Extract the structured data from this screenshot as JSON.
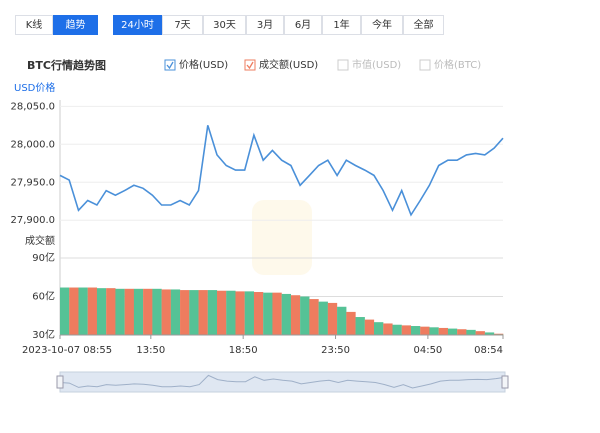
{
  "tabs": {
    "view": [
      "K线",
      "趋势"
    ],
    "active_view": 1,
    "range": [
      "24小时",
      "7天",
      "30天",
      "3月",
      "6月",
      "1年",
      "今年",
      "全部"
    ],
    "active_range": 0
  },
  "title": "BTC行情趋势图",
  "legend_inactive": [
    "市值(USD)",
    "价格(BTC)"
  ],
  "chart_data": [
    {
      "type": "line",
      "y_label": "USD价格",
      "x": [
        0,
        30,
        60,
        90,
        120,
        150,
        180,
        210,
        240,
        270,
        300,
        330,
        360,
        390,
        420,
        450,
        480,
        510,
        540,
        570,
        600,
        630,
        660,
        690,
        720,
        750,
        780,
        810,
        840,
        870,
        900,
        930,
        960,
        990,
        1020,
        1050,
        1080,
        1110,
        1140,
        1170,
        1200,
        1230,
        1260,
        1290,
        1320,
        1350,
        1380,
        1410,
        1439
      ],
      "xlim": [
        0,
        1439
      ],
      "series": [
        {
          "name": "价格(USD)",
          "color": "#4a90d9",
          "values": [
            27959,
            27953,
            27913,
            27926,
            27920,
            27939,
            27933,
            27939,
            27946,
            27942,
            27933,
            27920,
            27920,
            27926,
            27920,
            27939,
            28025,
            27986,
            27972,
            27966,
            27966,
            28012,
            27979,
            27992,
            27979,
            27972,
            27946,
            27959,
            27972,
            27979,
            27959,
            27979,
            27972,
            27966,
            27959,
            27939,
            27913,
            27939,
            27907,
            27926,
            27946,
            27972,
            27979,
            27979,
            27986,
            27988,
            27986,
            27995,
            28008
          ]
        }
      ],
      "ylim": [
        27870,
        28057
      ],
      "yticks": [
        {
          "value": 27900,
          "label": "27,900.0"
        },
        {
          "value": 27950,
          "label": "27,950.0"
        },
        {
          "value": 28000,
          "label": "28,000.0"
        },
        {
          "value": 28050,
          "label": "28,050.0"
        }
      ],
      "grid": true
    },
    {
      "type": "bar",
      "y_label": "成交额",
      "x": [
        0,
        30,
        60,
        90,
        120,
        150,
        180,
        210,
        240,
        270,
        300,
        330,
        360,
        390,
        420,
        450,
        480,
        510,
        540,
        570,
        600,
        630,
        660,
        690,
        720,
        750,
        780,
        810,
        840,
        870,
        900,
        930,
        960,
        990,
        1020,
        1050,
        1080,
        1110,
        1140,
        1170,
        1200,
        1230,
        1260,
        1290,
        1320,
        1350,
        1380,
        1410,
        1439
      ],
      "xlim": [
        0,
        1439
      ],
      "series": [
        {
          "name": "成交额(USD)",
          "color": "#ee7c5f",
          "colors": [
            "#55c296",
            "#ee7c5f"
          ],
          "values": [
            67,
            67,
            67,
            67,
            66.5,
            66.5,
            66,
            66,
            66,
            66,
            66,
            65.5,
            65.5,
            65,
            65,
            65,
            65,
            64.5,
            64.5,
            64,
            64,
            63.5,
            63,
            63,
            62,
            61,
            60,
            58,
            56,
            55,
            52,
            48,
            44,
            42,
            40,
            39,
            38,
            37.5,
            37,
            36.5,
            36,
            35.5,
            35,
            34.5,
            34,
            33,
            32,
            31,
            30.5
          ]
        }
      ],
      "ylim": [
        30,
        90
      ],
      "yticks": [
        {
          "value": 30,
          "label": "30亿"
        },
        {
          "value": 60,
          "label": "60亿"
        },
        {
          "value": 90,
          "label": "90亿"
        }
      ],
      "xticks": [
        {
          "value": 0,
          "label": "2023-10-07 08:55"
        },
        {
          "value": 295,
          "label": "13:50"
        },
        {
          "value": 595,
          "label": "18:50"
        },
        {
          "value": 895,
          "label": "23:50"
        },
        {
          "value": 1195,
          "label": "04:50"
        },
        {
          "value": 1439,
          "label": "08:54"
        }
      ],
      "grid": true
    }
  ]
}
